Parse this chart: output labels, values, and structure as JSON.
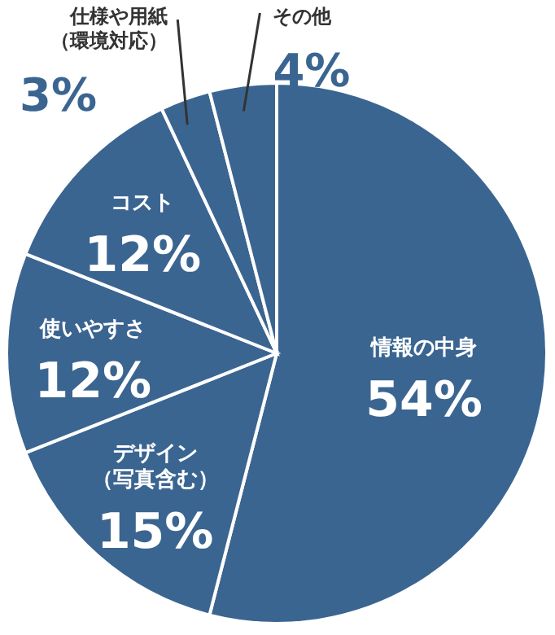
{
  "chart_data": {
    "type": "pie",
    "categories": [
      "情報の中身",
      "デザイン（写真含む）",
      "使いやすさ",
      "コスト",
      "仕様や用紙（環境対応）",
      "その他"
    ],
    "values": [
      54,
      15,
      12,
      12,
      3,
      4
    ],
    "colors": [
      "#3b6591",
      "#3b6591",
      "#3b6591",
      "#3b6591",
      "#3b6591",
      "#3b6591"
    ],
    "value_labels": [
      "54%",
      "15%",
      "12%",
      "12%",
      "3%",
      "4%"
    ]
  }
}
